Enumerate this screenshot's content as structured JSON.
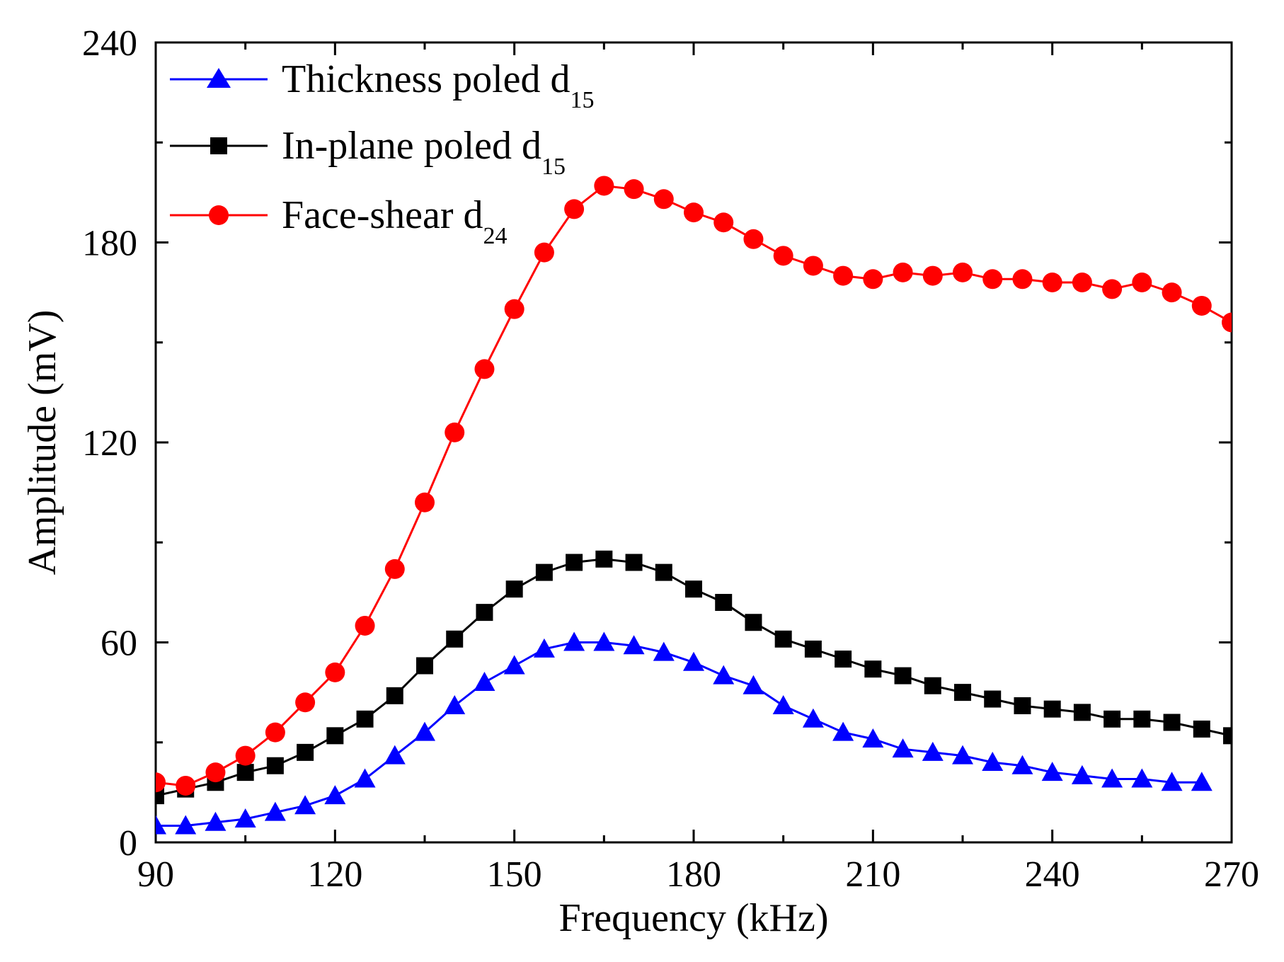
{
  "chart_data": {
    "type": "line",
    "title": "",
    "xlabel": "Frequency (kHz)",
    "ylabel": "Amplitude (mV)",
    "xlim": [
      90,
      270
    ],
    "ylim": [
      0,
      240
    ],
    "xticks": [
      90,
      120,
      150,
      180,
      210,
      240,
      270
    ],
    "yticks": [
      0,
      60,
      120,
      180,
      240
    ],
    "xtick_labels": [
      "90",
      "120",
      "150",
      "180",
      "210",
      "240",
      "270"
    ],
    "ytick_labels": [
      "0",
      "60",
      "120",
      "180",
      "240"
    ],
    "grid": false,
    "legend_position": "top-left",
    "series": [
      {
        "name": "Thickness poled d15",
        "legend_main": "Thickness poled d",
        "legend_sub": "15",
        "color": "#0000ff",
        "marker": "triangle",
        "x": [
          90,
          95,
          100,
          105,
          110,
          115,
          120,
          125,
          130,
          135,
          140,
          145,
          150,
          155,
          160,
          165,
          170,
          175,
          180,
          185,
          190,
          195,
          200,
          205,
          210,
          215,
          220,
          225,
          230,
          235,
          240,
          245,
          250,
          255,
          260,
          265
        ],
        "values": [
          5,
          5,
          6,
          7,
          9,
          11,
          14,
          19,
          26,
          33,
          41,
          48,
          53,
          58,
          60,
          60,
          59,
          57,
          54,
          50,
          47,
          41,
          37,
          33,
          31,
          28,
          27,
          26,
          24,
          23,
          21,
          20,
          19,
          19,
          18,
          18
        ]
      },
      {
        "name": "In-plane poled d15",
        "legend_main": "In-plane poled d",
        "legend_sub": "15",
        "color": "#000000",
        "marker": "square",
        "x": [
          90,
          95,
          100,
          105,
          110,
          115,
          120,
          125,
          130,
          135,
          140,
          145,
          150,
          155,
          160,
          165,
          170,
          175,
          180,
          185,
          190,
          195,
          200,
          205,
          210,
          215,
          220,
          225,
          230,
          235,
          240,
          245,
          250,
          255,
          260,
          265,
          270
        ],
        "values": [
          14,
          16,
          18,
          21,
          23,
          27,
          32,
          37,
          44,
          53,
          61,
          69,
          76,
          81,
          84,
          85,
          84,
          81,
          76,
          72,
          66,
          61,
          58,
          55,
          52,
          50,
          47,
          45,
          43,
          41,
          40,
          39,
          37,
          37,
          36,
          34,
          32
        ]
      },
      {
        "name": "Face-shear d24",
        "legend_main": "Face-shear d",
        "legend_sub": "24",
        "color": "#ff0000",
        "marker": "circle",
        "x": [
          90,
          95,
          100,
          105,
          110,
          115,
          120,
          125,
          130,
          135,
          140,
          145,
          150,
          155,
          160,
          165,
          170,
          175,
          180,
          185,
          190,
          195,
          200,
          205,
          210,
          215,
          220,
          225,
          230,
          235,
          240,
          245,
          250,
          255,
          260,
          265,
          270
        ],
        "values": [
          18,
          17,
          21,
          26,
          33,
          42,
          51,
          65,
          82,
          102,
          123,
          142,
          160,
          177,
          190,
          197,
          196,
          193,
          189,
          186,
          181,
          176,
          173,
          170,
          169,
          171,
          170,
          171,
          169,
          169,
          168,
          168,
          166,
          168,
          165,
          161,
          156
        ]
      }
    ]
  }
}
